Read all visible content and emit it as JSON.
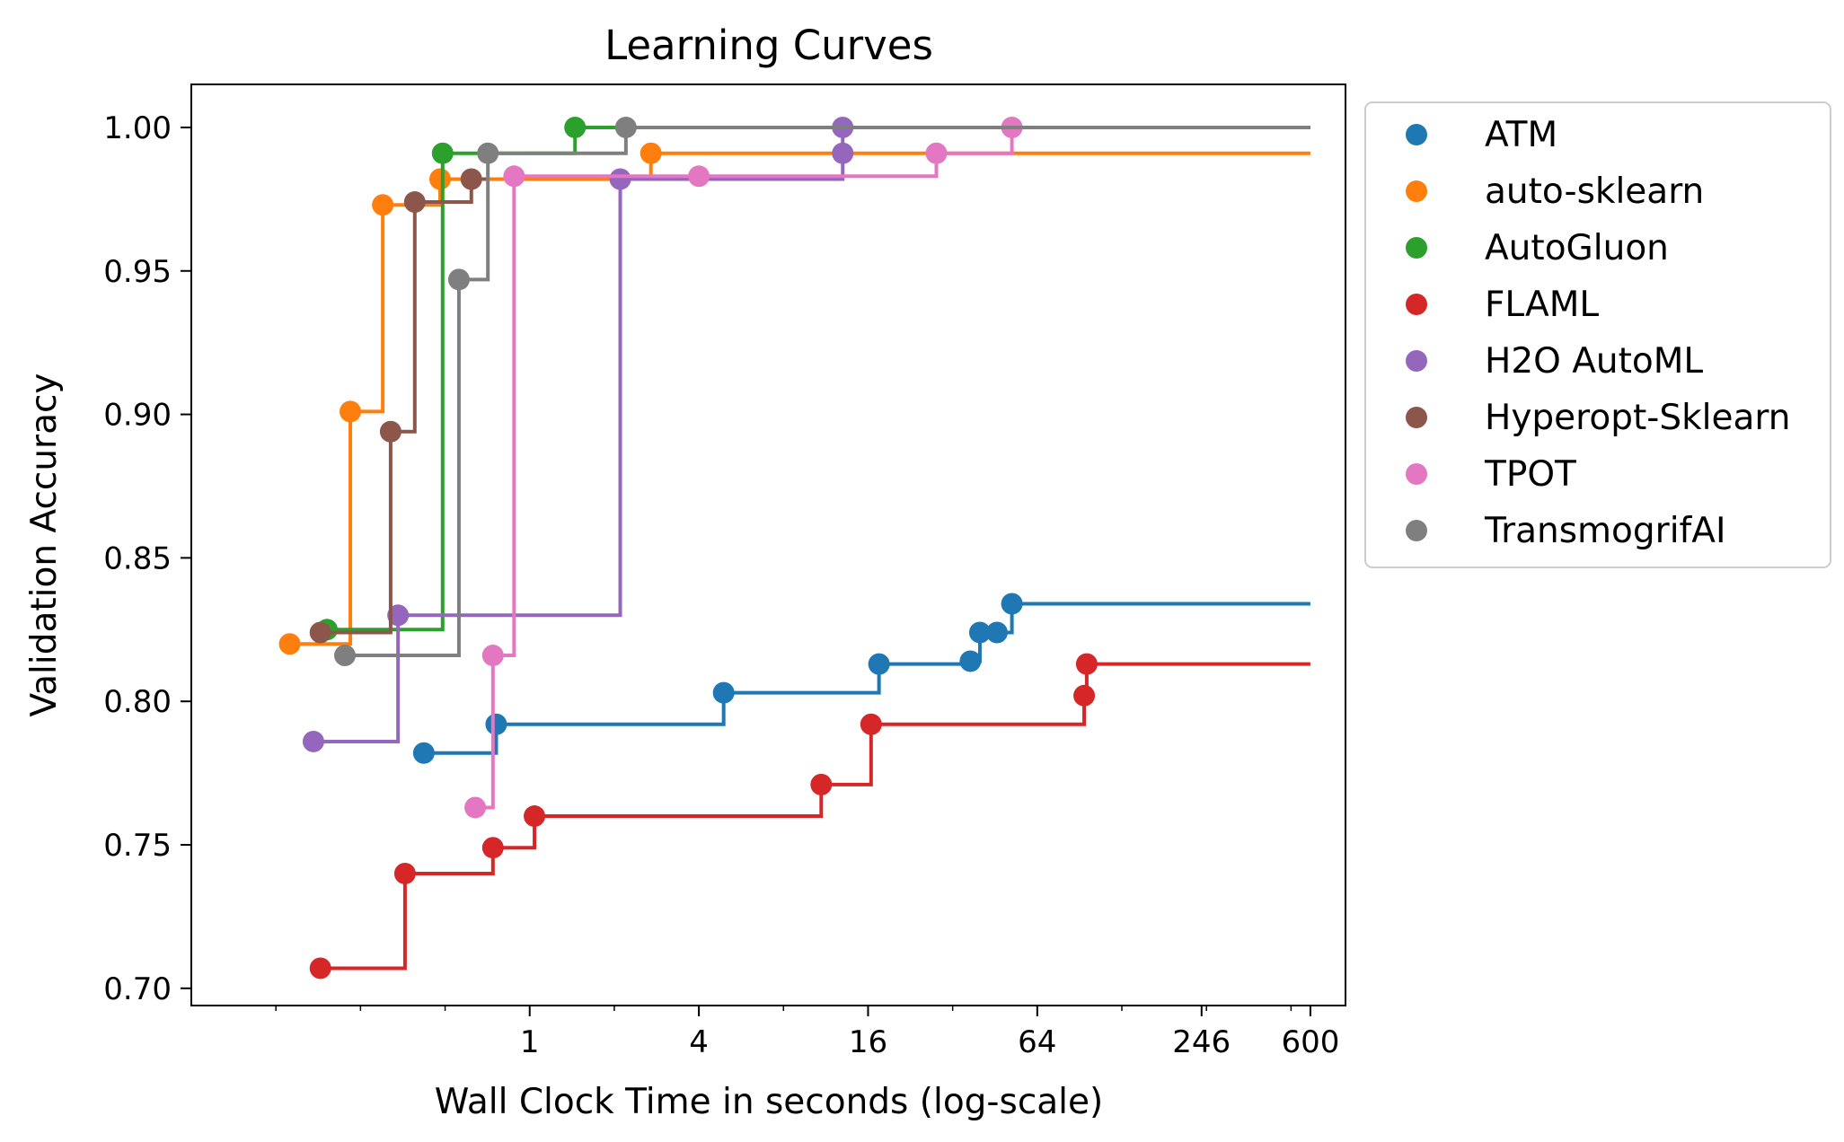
{
  "chart_data": {
    "type": "line",
    "step": "post",
    "title": "Learning Curves",
    "xlabel": "Wall Clock Time in seconds (log-scale)",
    "ylabel": "Validation Accuracy",
    "xscale": "log2",
    "xlim": [
      0.0625,
      800
    ],
    "ylim": [
      0.694,
      1.015
    ],
    "xticks": [
      {
        "value": 1,
        "label": "1"
      },
      {
        "value": 4,
        "label": "4"
      },
      {
        "value": 16,
        "label": "16"
      },
      {
        "value": 64,
        "label": "64"
      },
      {
        "value": 246,
        "label": "246"
      },
      {
        "value": 600,
        "label": "600"
      }
    ],
    "yticks": [
      {
        "value": 0.7,
        "label": "0.70"
      },
      {
        "value": 0.75,
        "label": "0.75"
      },
      {
        "value": 0.8,
        "label": "0.80"
      },
      {
        "value": 0.85,
        "label": "0.85"
      },
      {
        "value": 0.9,
        "label": "0.90"
      },
      {
        "value": 0.95,
        "label": "0.95"
      },
      {
        "value": 1.0,
        "label": "1.00"
      }
    ],
    "grid": false,
    "legend_position": "outside-right",
    "series": [
      {
        "name": "ATM",
        "color": "#1f77b4",
        "end_x": 600,
        "points": [
          [
            0.42,
            0.782
          ],
          [
            0.76,
            0.792
          ],
          [
            4.9,
            0.803
          ],
          [
            17.5,
            0.813
          ],
          [
            37,
            0.814
          ],
          [
            40,
            0.824
          ],
          [
            46,
            0.824
          ],
          [
            52,
            0.834
          ]
        ]
      },
      {
        "name": "auto-sklearn",
        "color": "#ff7f0e",
        "end_x": 600,
        "points": [
          [
            0.14,
            0.82
          ],
          [
            0.23,
            0.901
          ],
          [
            0.3,
            0.973
          ],
          [
            0.48,
            0.982
          ],
          [
            2.7,
            0.991
          ]
        ]
      },
      {
        "name": "AutoGluon",
        "color": "#2ca02c",
        "end_x": 600,
        "points": [
          [
            0.19,
            0.825
          ],
          [
            0.49,
            0.991
          ],
          [
            1.45,
            1.0
          ]
        ]
      },
      {
        "name": "FLAML",
        "color": "#d62728",
        "end_x": 600,
        "points": [
          [
            0.18,
            0.707
          ],
          [
            0.36,
            0.74
          ],
          [
            0.74,
            0.749
          ],
          [
            1.04,
            0.76
          ],
          [
            10.9,
            0.771
          ],
          [
            16.4,
            0.792
          ],
          [
            94,
            0.802
          ],
          [
            96,
            0.813
          ]
        ]
      },
      {
        "name": "H2O AutoML",
        "color": "#9467bd",
        "end_x": 13,
        "points": [
          [
            0.17,
            0.786
          ],
          [
            0.34,
            0.83
          ],
          [
            2.1,
            0.982
          ],
          [
            13,
            0.991
          ],
          [
            13,
            1.0
          ]
        ]
      },
      {
        "name": "Hyperopt-Sklearn",
        "color": "#8c564b",
        "end_x": 0.7,
        "points": [
          [
            0.18,
            0.824
          ],
          [
            0.32,
            0.894
          ],
          [
            0.39,
            0.974
          ],
          [
            0.62,
            0.982
          ]
        ]
      },
      {
        "name": "TPOT",
        "color": "#e377c2",
        "end_x": 52,
        "points": [
          [
            0.64,
            0.763
          ],
          [
            0.74,
            0.816
          ],
          [
            0.88,
            0.983
          ],
          [
            4,
            0.983
          ],
          [
            28,
            0.991
          ],
          [
            52,
            1.0
          ]
        ]
      },
      {
        "name": "TransmogrifAI",
        "color": "#7f7f7f",
        "end_x": 600,
        "points": [
          [
            0.22,
            0.816
          ],
          [
            0.56,
            0.947
          ],
          [
            0.71,
            0.991
          ],
          [
            2.2,
            1.0
          ]
        ]
      }
    ]
  }
}
